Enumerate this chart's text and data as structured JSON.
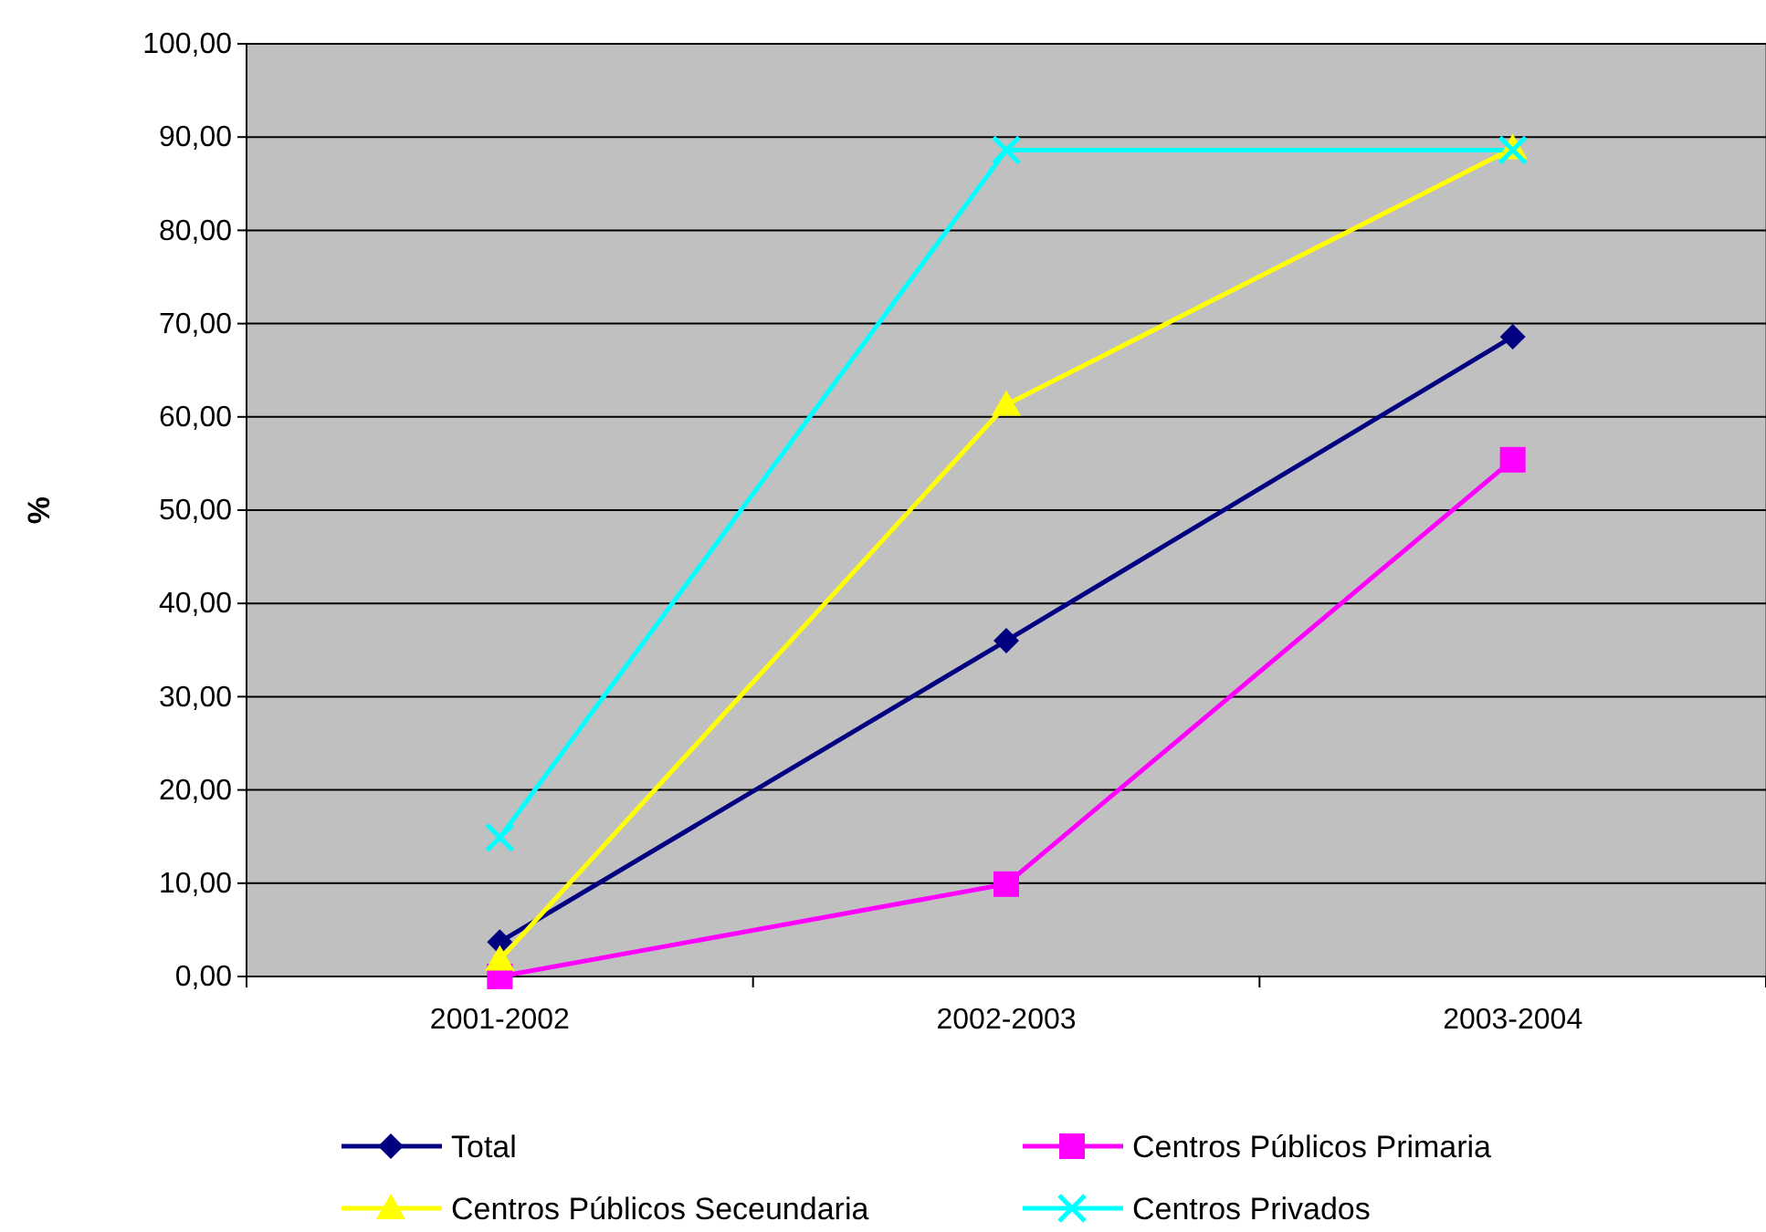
{
  "chart_data": {
    "type": "line",
    "ylabel": "%",
    "categories": [
      "2001-2002",
      "2002-2003",
      "2003-2004"
    ],
    "series": [
      {
        "name": "Total",
        "color": "#000080",
        "marker": "diamond",
        "values": [
          3.7,
          36.0,
          68.6
        ]
      },
      {
        "name": "Centros Públicos Primaria",
        "color": "#ff00ff",
        "marker": "square",
        "values": [
          0,
          9.9,
          55.4
        ]
      },
      {
        "name": "Centros Públicos Seceundaria",
        "color": "#ffff00",
        "marker": "triangle",
        "values": [
          1.8,
          61.3,
          88.8
        ]
      },
      {
        "name": "Centros Privados",
        "color": "#00ffff",
        "marker": "cross",
        "values": [
          14.9,
          88.6,
          88.6
        ]
      }
    ],
    "ylim": [
      0,
      100
    ],
    "yticks": [
      {
        "value": 0,
        "label": "0,00"
      },
      {
        "value": 10,
        "label": "10,00"
      },
      {
        "value": 20,
        "label": "20,00"
      },
      {
        "value": 30,
        "label": "30,00"
      },
      {
        "value": 40,
        "label": "40,00"
      },
      {
        "value": 50,
        "label": "50,00"
      },
      {
        "value": 60,
        "label": "60,00"
      },
      {
        "value": 70,
        "label": "70,00"
      },
      {
        "value": 80,
        "label": "80,00"
      },
      {
        "value": 90,
        "label": "90,00"
      },
      {
        "value": 100,
        "label": "100,00"
      }
    ],
    "grid": "y",
    "legend": "bottom"
  }
}
